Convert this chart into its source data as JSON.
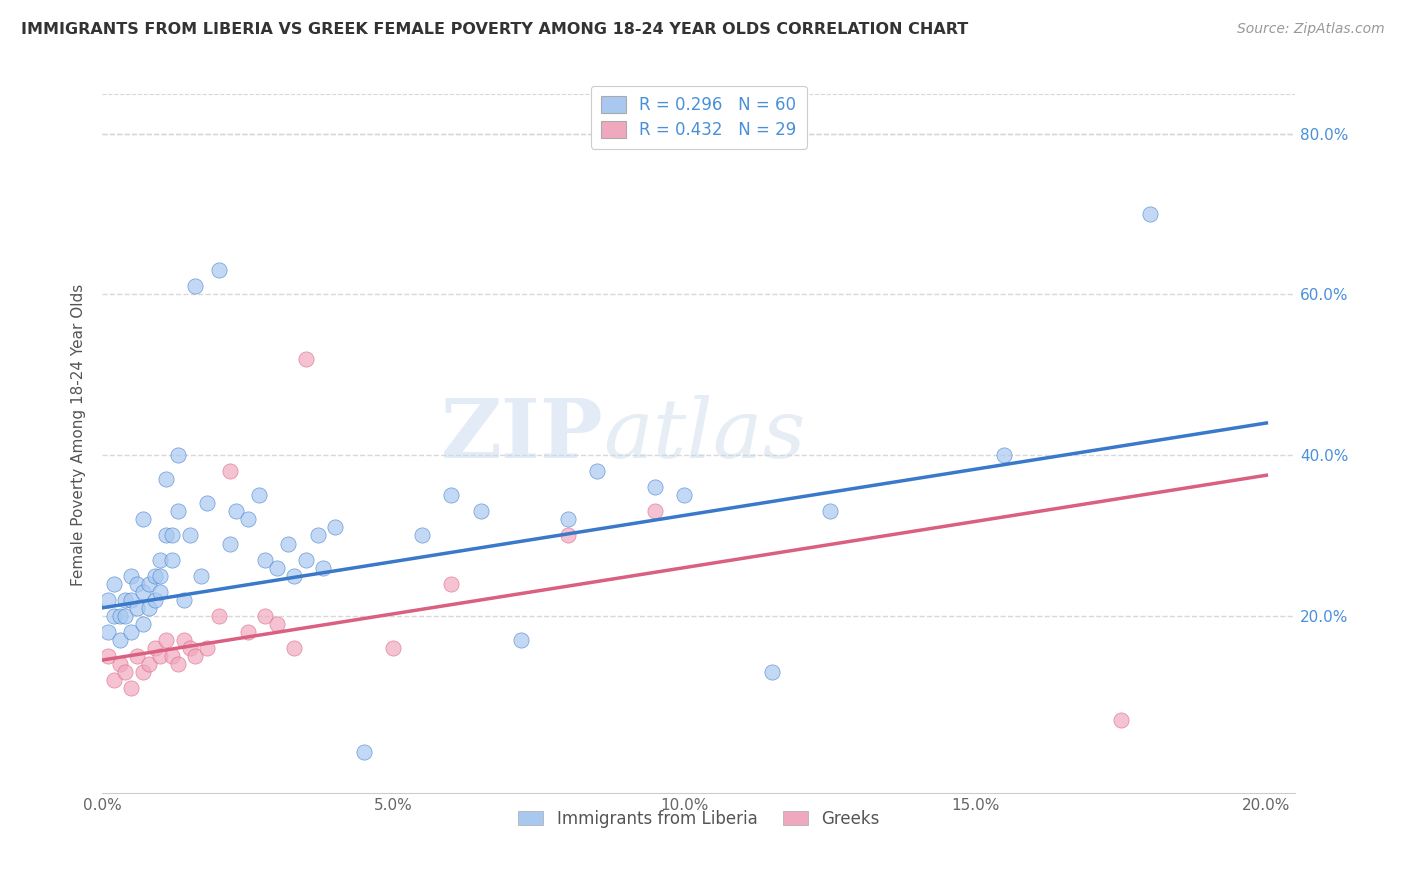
{
  "title": "IMMIGRANTS FROM LIBERIA VS GREEK FEMALE POVERTY AMONG 18-24 YEAR OLDS CORRELATION CHART",
  "source": "Source: ZipAtlas.com",
  "ylabel": "Female Poverty Among 18-24 Year Olds",
  "xlim": [
    0.0,
    0.205
  ],
  "ylim": [
    -0.02,
    0.87
  ],
  "xtick_vals": [
    0.0,
    0.05,
    0.1,
    0.15,
    0.2
  ],
  "xtick_labels": [
    "0.0%",
    "5.0%",
    "10.0%",
    "15.0%",
    "20.0%"
  ],
  "ytick_vals": [
    0.2,
    0.4,
    0.6,
    0.8
  ],
  "ytick_labels": [
    "20.0%",
    "40.0%",
    "60.0%",
    "80.0%"
  ],
  "legend1_label": "R = 0.296   N = 60",
  "legend2_label": "R = 0.432   N = 29",
  "liberia_color": "#a8c8f0",
  "greek_color": "#f0a8be",
  "liberia_line_color": "#3a78c9",
  "greek_line_color": "#d96080",
  "watermark": "ZIPatlas",
  "background_color": "#ffffff",
  "liberia_points_x": [
    0.001,
    0.001,
    0.002,
    0.002,
    0.003,
    0.003,
    0.004,
    0.004,
    0.005,
    0.005,
    0.005,
    0.006,
    0.006,
    0.007,
    0.007,
    0.007,
    0.008,
    0.008,
    0.009,
    0.009,
    0.01,
    0.01,
    0.01,
    0.011,
    0.011,
    0.012,
    0.012,
    0.013,
    0.013,
    0.014,
    0.015,
    0.016,
    0.017,
    0.018,
    0.02,
    0.022,
    0.023,
    0.025,
    0.027,
    0.028,
    0.03,
    0.032,
    0.033,
    0.035,
    0.037,
    0.038,
    0.04,
    0.045,
    0.055,
    0.06,
    0.065,
    0.072,
    0.08,
    0.085,
    0.095,
    0.1,
    0.115,
    0.125,
    0.155,
    0.18
  ],
  "liberia_points_y": [
    0.22,
    0.18,
    0.24,
    0.2,
    0.2,
    0.17,
    0.22,
    0.2,
    0.25,
    0.18,
    0.22,
    0.24,
    0.21,
    0.32,
    0.23,
    0.19,
    0.24,
    0.21,
    0.25,
    0.22,
    0.27,
    0.25,
    0.23,
    0.37,
    0.3,
    0.3,
    0.27,
    0.4,
    0.33,
    0.22,
    0.3,
    0.61,
    0.25,
    0.34,
    0.63,
    0.29,
    0.33,
    0.32,
    0.35,
    0.27,
    0.26,
    0.29,
    0.25,
    0.27,
    0.3,
    0.26,
    0.31,
    0.03,
    0.3,
    0.35,
    0.33,
    0.17,
    0.32,
    0.38,
    0.36,
    0.35,
    0.13,
    0.33,
    0.4,
    0.7
  ],
  "greek_points_x": [
    0.001,
    0.002,
    0.003,
    0.004,
    0.005,
    0.006,
    0.007,
    0.008,
    0.009,
    0.01,
    0.011,
    0.012,
    0.013,
    0.014,
    0.015,
    0.016,
    0.018,
    0.02,
    0.022,
    0.025,
    0.028,
    0.03,
    0.033,
    0.035,
    0.05,
    0.06,
    0.08,
    0.095,
    0.175
  ],
  "greek_points_y": [
    0.15,
    0.12,
    0.14,
    0.13,
    0.11,
    0.15,
    0.13,
    0.14,
    0.16,
    0.15,
    0.17,
    0.15,
    0.14,
    0.17,
    0.16,
    0.15,
    0.16,
    0.2,
    0.38,
    0.18,
    0.2,
    0.19,
    0.16,
    0.52,
    0.16,
    0.24,
    0.3,
    0.33,
    0.07
  ],
  "liberia_trend_x": [
    0.0,
    0.2
  ],
  "liberia_trend_y": [
    0.21,
    0.44
  ],
  "greek_trend_x": [
    0.0,
    0.2
  ],
  "greek_trend_y": [
    0.145,
    0.375
  ],
  "grid_color": "#d8d8d8",
  "label_color_blue": "#4a90d9",
  "label_color_dark": "#333333",
  "source_color": "#999999"
}
